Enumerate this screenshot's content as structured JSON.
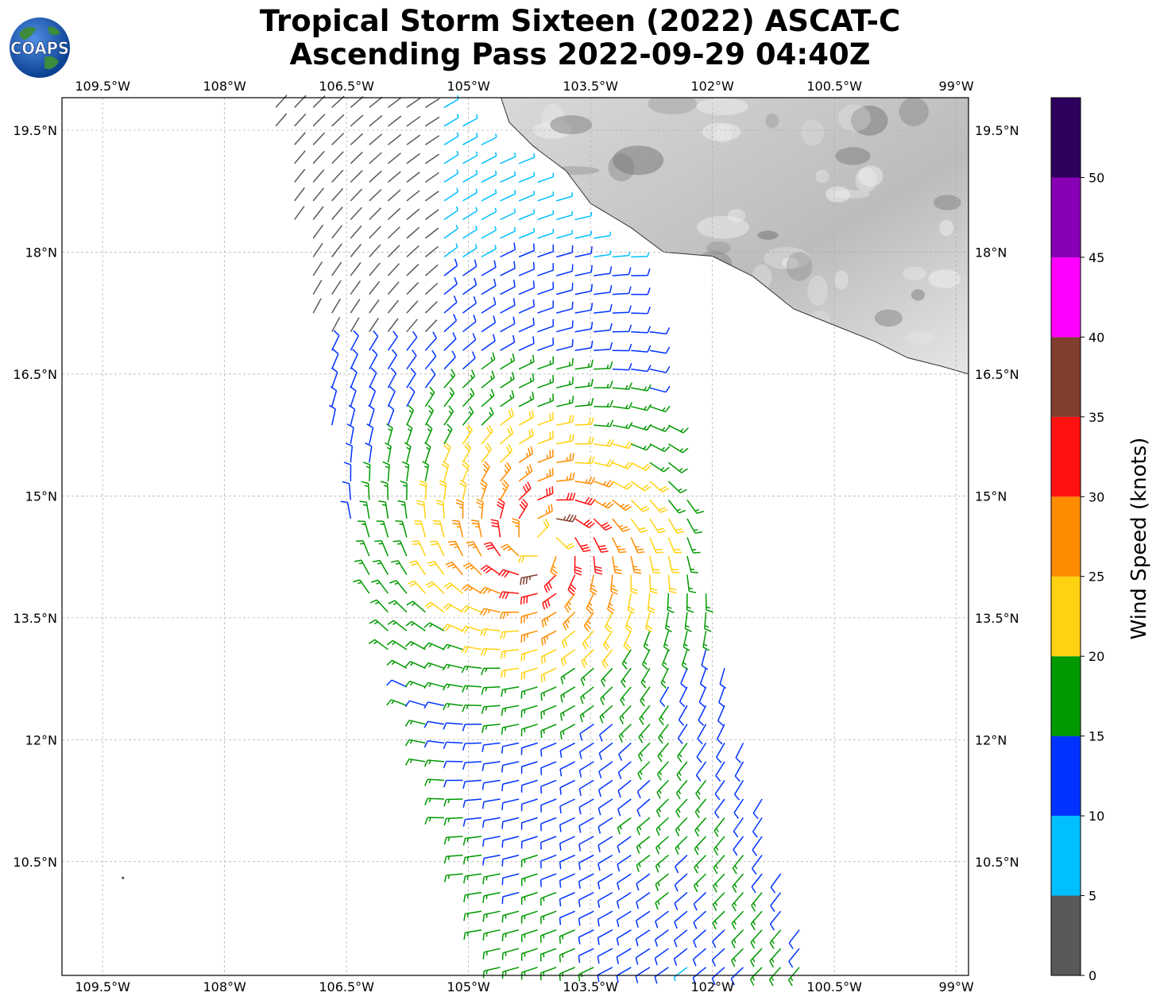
{
  "title": {
    "line1": "Tropical Storm Sixteen (2022) ASCAT-C",
    "line2": "Ascending Pass 2022-09-29 04:40Z"
  },
  "logo": {
    "text": "COAPS"
  },
  "map": {
    "lon_ticks": [
      "109.5°W",
      "108°W",
      "106.5°W",
      "105°W",
      "103.5°W",
      "102°W",
      "100.5°W",
      "99°W"
    ],
    "lat_ticks": [
      "19.5°N",
      "18°N",
      "16.5°N",
      "15°N",
      "13.5°N",
      "12°N",
      "10.5°N"
    ],
    "lon_range": [
      -110,
      -98.85
    ],
    "lat_range": [
      9.1,
      19.9
    ],
    "storm_center": {
      "lat": 14.4,
      "lon": -104.1
    },
    "grid": true
  },
  "colorbar": {
    "label": "Wind Speed (knots)",
    "ticks": [
      "0",
      "5",
      "10",
      "15",
      "20",
      "25",
      "30",
      "35",
      "40",
      "45",
      "50"
    ],
    "bins": [
      {
        "min": 0,
        "max": 5,
        "color": "#595959"
      },
      {
        "min": 5,
        "max": 10,
        "color": "#00bfff"
      },
      {
        "min": 10,
        "max": 15,
        "color": "#0033ff"
      },
      {
        "min": 15,
        "max": 20,
        "color": "#009900"
      },
      {
        "min": 20,
        "max": 25,
        "color": "#ffd211"
      },
      {
        "min": 25,
        "max": 30,
        "color": "#ff8c00"
      },
      {
        "min": 30,
        "max": 35,
        "color": "#ff1111"
      },
      {
        "min": 35,
        "max": 40,
        "color": "#803e2f"
      },
      {
        "min": 40,
        "max": 45,
        "color": "#ff00ff"
      },
      {
        "min": 45,
        "max": 50,
        "color": "#8700b5"
      },
      {
        "min": 50,
        "max": 55,
        "color": "#2e005e"
      }
    ]
  }
}
